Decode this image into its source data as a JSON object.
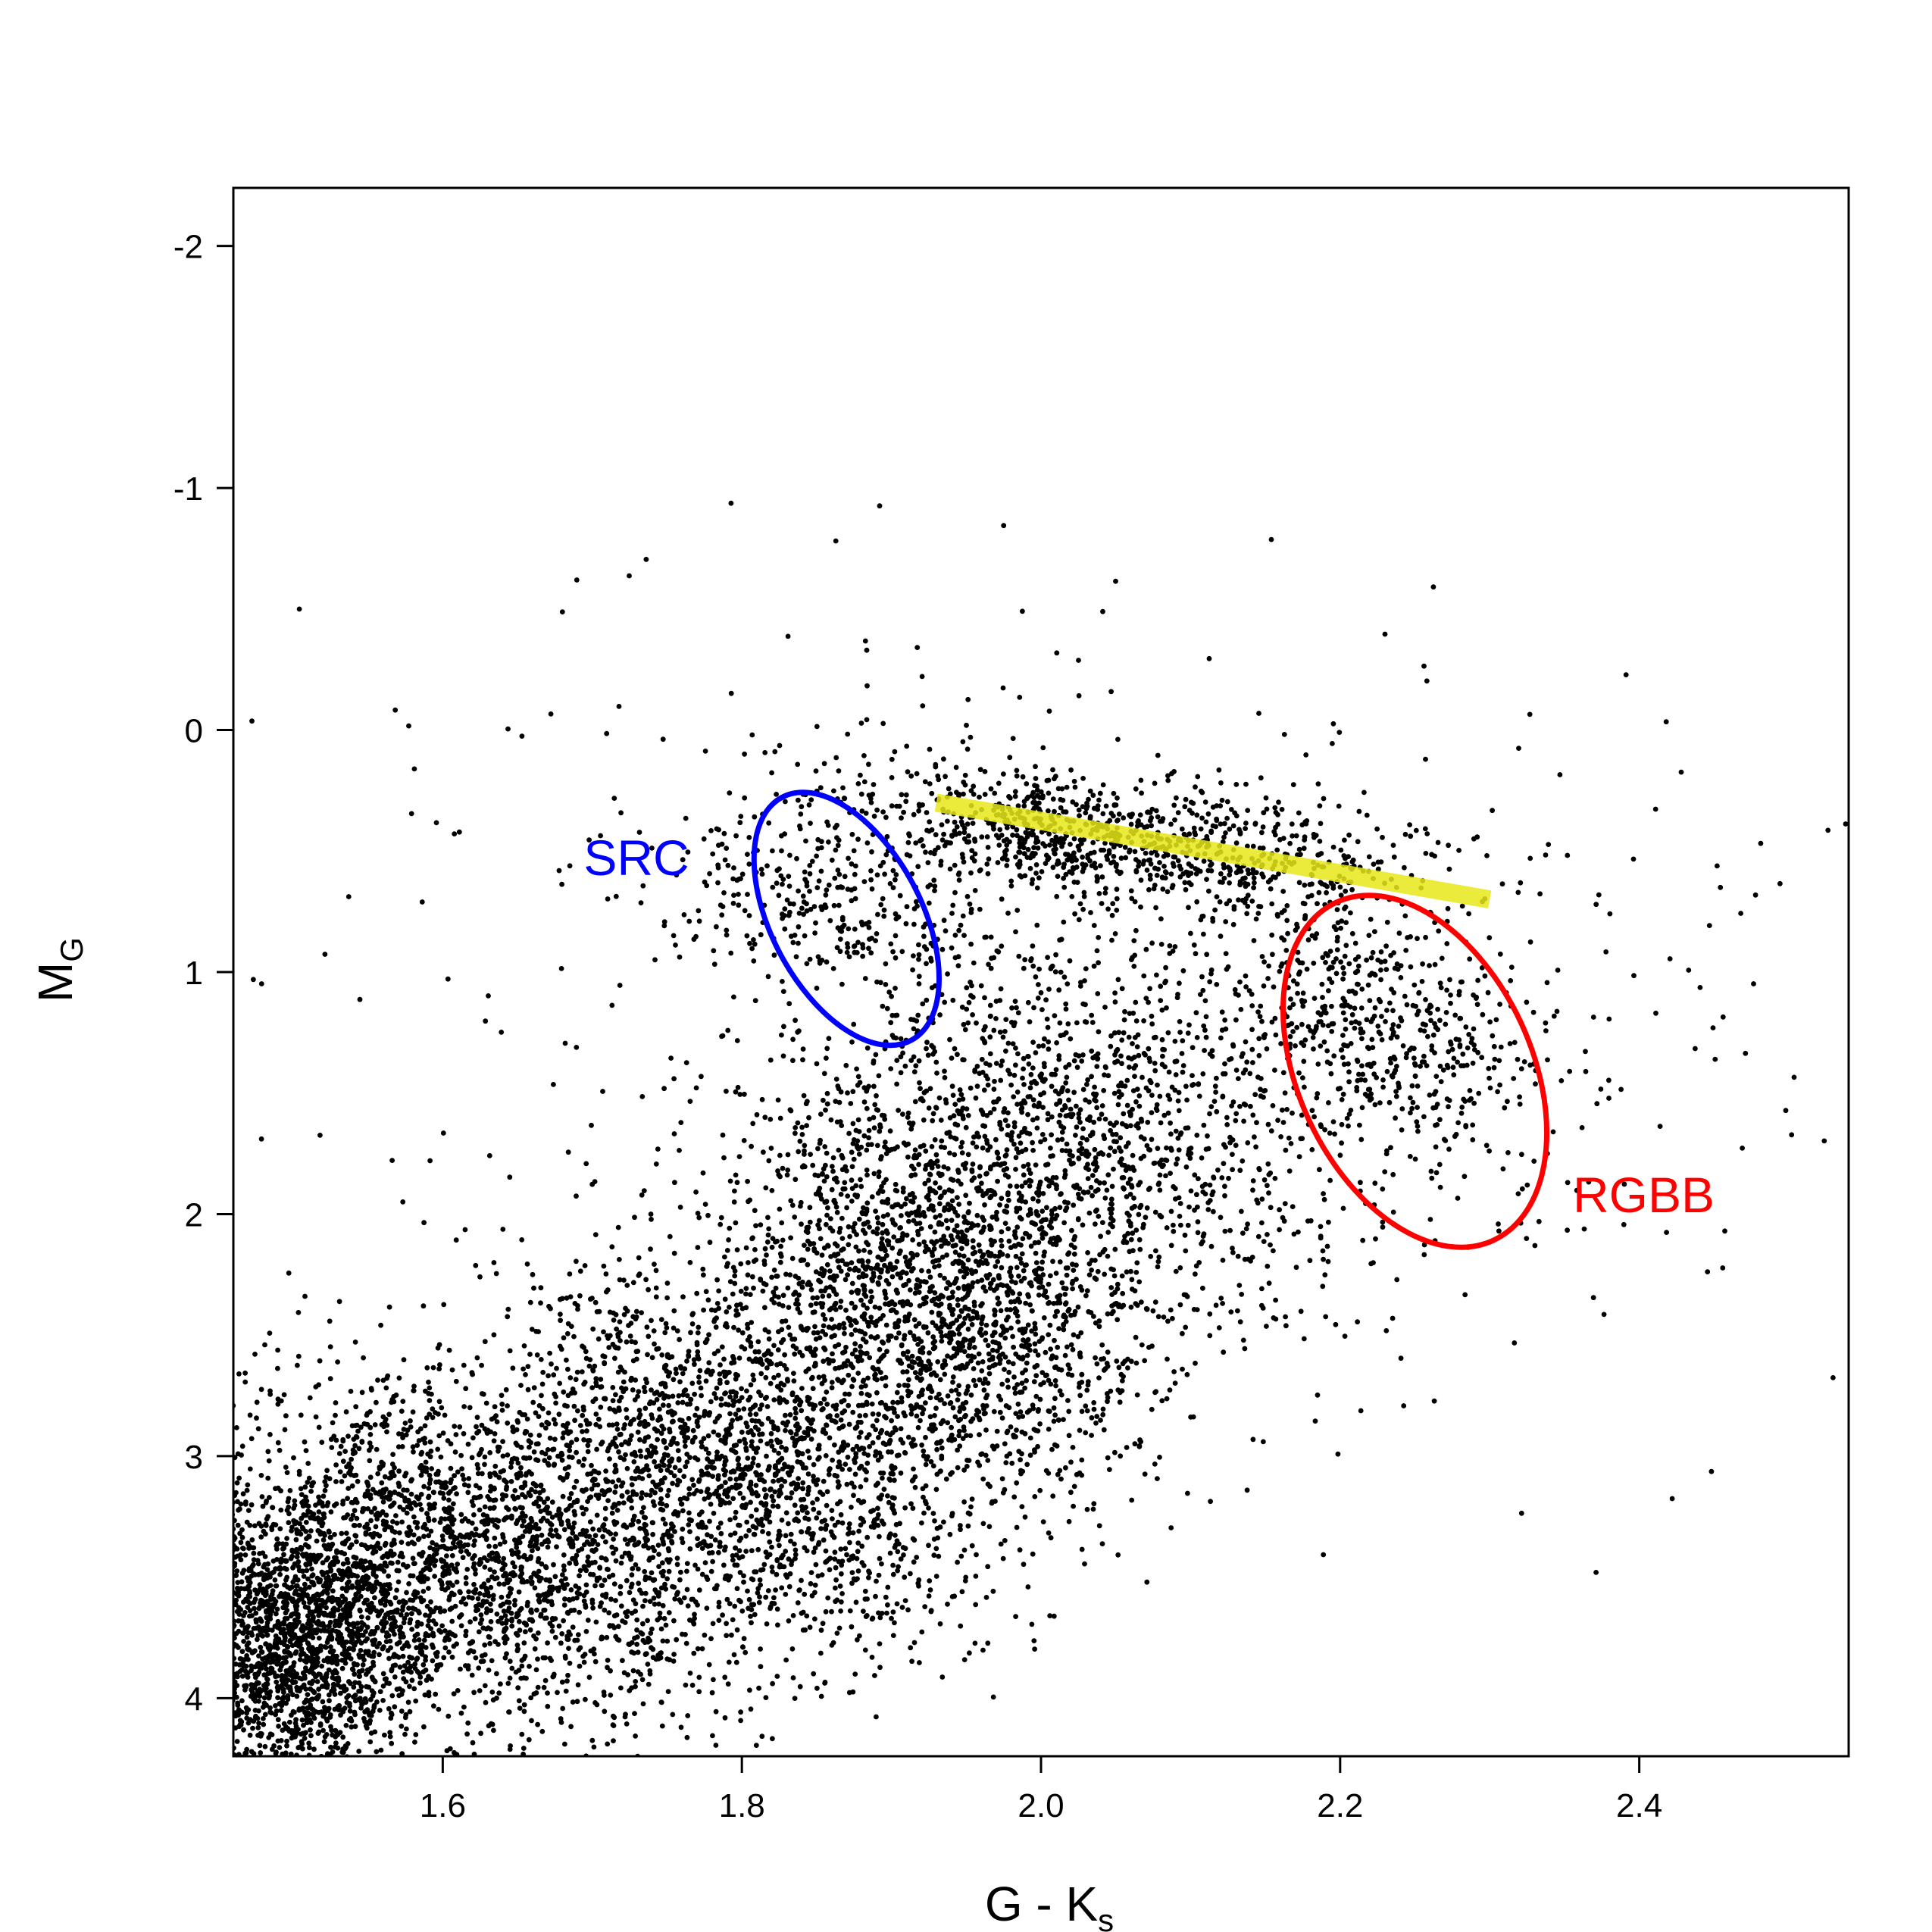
{
  "chart_data": {
    "type": "scatter",
    "title": "",
    "xlabel": {
      "main": "G - K",
      "sub": "s"
    },
    "ylabel": {
      "main": "M",
      "sub": "G"
    },
    "xlim": [
      1.46,
      2.54
    ],
    "ylim": [
      4.24,
      -2.24
    ],
    "y_inverted": true,
    "grid": false,
    "legend": "none",
    "x_ticks": [
      {
        "value": 1.6,
        "label": "1.6"
      },
      {
        "value": 1.8,
        "label": "1.8"
      },
      {
        "value": 2.0,
        "label": "2.0"
      },
      {
        "value": 2.2,
        "label": "2.2"
      },
      {
        "value": 2.4,
        "label": "2.4"
      }
    ],
    "y_ticks": [
      {
        "value": -2,
        "label": "-2"
      },
      {
        "value": -1,
        "label": "-1"
      },
      {
        "value": 0,
        "label": "0"
      },
      {
        "value": 1,
        "label": "1"
      },
      {
        "value": 2,
        "label": "2"
      },
      {
        "value": 3,
        "label": "3"
      },
      {
        "value": 4,
        "label": "4"
      }
    ],
    "point_color": "#000000",
    "point_count_approx": 12000,
    "density_regions": [
      {
        "cx": 1.5,
        "cy": 3.75,
        "sx": 0.05,
        "sy": 0.3,
        "rho": 0.0,
        "n": 2300
      },
      {
        "cx": 1.63,
        "cy": 3.4,
        "sx": 0.08,
        "sy": 0.35,
        "rho": 0.3,
        "n": 2000
      },
      {
        "cx": 1.8,
        "cy": 3.0,
        "sx": 0.08,
        "sy": 0.4,
        "rho": 0.3,
        "n": 2000
      },
      {
        "cx": 1.93,
        "cy": 2.3,
        "sx": 0.07,
        "sy": 0.4,
        "rho": 0.3,
        "n": 2000
      },
      {
        "cx": 2.03,
        "cy": 1.6,
        "sx": 0.08,
        "sy": 0.4,
        "rho": 0.3,
        "n": 1100
      },
      {
        "cx": 2.05,
        "cy": 0.45,
        "sx": 0.1,
        "sy": 0.15,
        "rho": 0.5,
        "n": 1000
      },
      {
        "cx": 2.22,
        "cy": 1.2,
        "sx": 0.06,
        "sy": 0.3,
        "rho": 0.4,
        "n": 600
      },
      {
        "cx": 1.86,
        "cy": 0.7,
        "sx": 0.06,
        "sy": 0.18,
        "rho": 0.2,
        "n": 300
      },
      {
        "cx": 2.05,
        "cy": 1.2,
        "sx": 0.3,
        "sy": 0.9,
        "rho": 0.2,
        "n": 500
      }
    ],
    "annotations": [
      {
        "name": "SRC",
        "label": "SRC",
        "color": "#0000ff",
        "shape": "ellipse",
        "center": [
          1.87,
          0.78
        ],
        "semi_axes": [
          0.092,
          0.31
        ],
        "rotation_deg": 62
      },
      {
        "name": "RGBB",
        "label": "RGBB",
        "color": "#ff0000",
        "shape": "ellipse",
        "center": [
          2.25,
          1.41
        ],
        "semi_axes": [
          0.078,
          0.77
        ],
        "rotation_deg": -25
      },
      {
        "name": "slope",
        "label": "",
        "color": "#e8e81a",
        "shape": "band",
        "from": [
          1.93,
          0.3
        ],
        "to": [
          2.3,
          0.7
        ]
      }
    ]
  }
}
